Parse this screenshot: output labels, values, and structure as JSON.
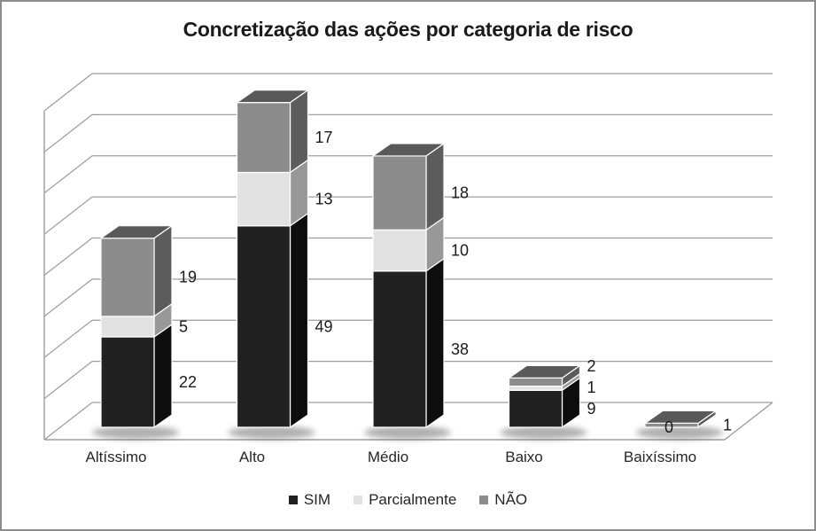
{
  "chart_data": {
    "type": "bar",
    "variant": "3d-stacked-column",
    "title": "Concretização das ações por categoria de risco",
    "categories": [
      "Altíssimo",
      "Alto",
      "Médio",
      "Baixo",
      "Baixíssimo"
    ],
    "series": [
      {
        "name": "SIM",
        "color": "#212121",
        "side_color": "#0d0d0d",
        "top_color": "#383838",
        "values": [
          22,
          49,
          38,
          9,
          0
        ],
        "labels": [
          "22",
          "49",
          "38",
          "9",
          "0"
        ]
      },
      {
        "name": "Parcialmente",
        "color": "#e2e2e2",
        "side_color": "#989898",
        "top_color": "#cfcfcf",
        "values": [
          5,
          13,
          10,
          1,
          0
        ],
        "labels": [
          "5",
          "13",
          "10",
          "1",
          ""
        ]
      },
      {
        "name": "NÃO",
        "color": "#8c8c8c",
        "side_color": "#5c5c5c",
        "top_color": "#595959",
        "values": [
          19,
          17,
          18,
          2,
          1
        ],
        "labels": [
          "19",
          "17",
          "18",
          "2",
          "1"
        ]
      }
    ],
    "ylim": [
      0,
      80
    ],
    "gridline_step": 10,
    "y_axis_tick_labels_visible": false,
    "grid": true,
    "legend_position": "bottom",
    "gridline_color": "#9d9d9d",
    "label_color": "#1a1a1a"
  }
}
